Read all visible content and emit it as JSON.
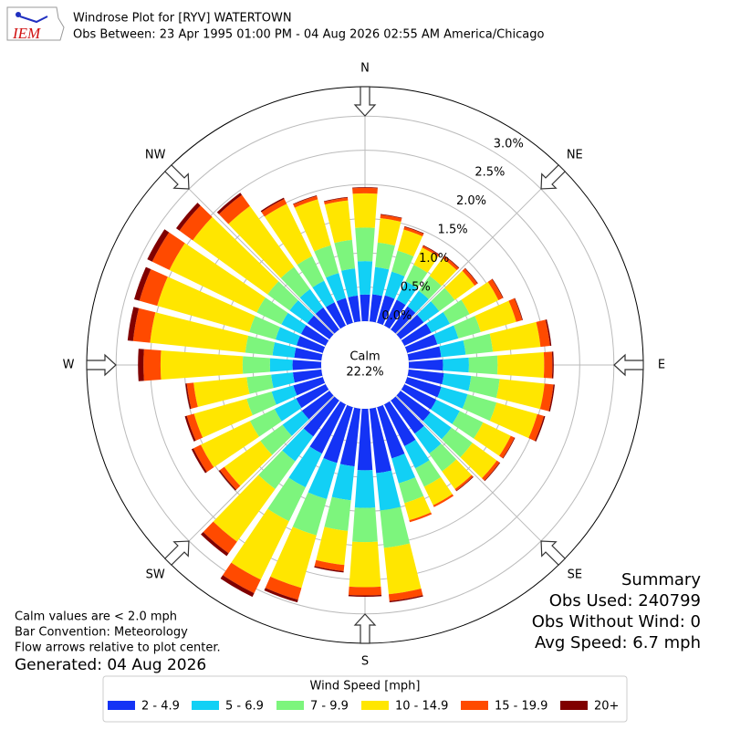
{
  "logo_text": "IEM",
  "chart_data": {
    "type": "windrose",
    "title": "Windrose Plot for [RYV] WATERTOWN",
    "subtitle": "Obs Between: 23 Apr 1995 01:00 PM - 04 Aug 2026 02:55 AM America/Chicago",
    "x": [
      0,
      10,
      20,
      30,
      40,
      50,
      60,
      70,
      80,
      90,
      100,
      110,
      120,
      130,
      140,
      150,
      160,
      170,
      180,
      190,
      200,
      210,
      220,
      230,
      240,
      250,
      260,
      270,
      280,
      290,
      300,
      310,
      320,
      330,
      340,
      350
    ],
    "xlim": [
      0,
      360
    ],
    "xticks": [
      {
        "value": 0,
        "label": "N"
      },
      {
        "value": 45,
        "label": "NE"
      },
      {
        "value": 90,
        "label": "E"
      },
      {
        "value": 135,
        "label": "SE"
      },
      {
        "value": 180,
        "label": "S"
      },
      {
        "value": 225,
        "label": "SW"
      },
      {
        "value": 270,
        "label": "W"
      },
      {
        "value": 315,
        "label": "NW"
      }
    ],
    "ylim": [
      0,
      3.43
    ],
    "yticks": [
      {
        "value": 0,
        "label": "0.0%"
      },
      {
        "value": 0.5,
        "label": "0.5%"
      },
      {
        "value": 1.0,
        "label": "1.0%"
      },
      {
        "value": 1.5,
        "label": "1.5%"
      },
      {
        "value": 2.0,
        "label": "2.0%"
      },
      {
        "value": 2.5,
        "label": "2.5%"
      },
      {
        "value": 3.0,
        "label": "3.0%"
      }
    ],
    "grid": true,
    "calm": {
      "label": "Calm",
      "text": "22.2%"
    },
    "legend_title": "Wind Speed [mph]",
    "series": [
      {
        "name": "2 - 4.9",
        "color": "#1433f5",
        "values": [
          0.39,
          0.4,
          0.42,
          0.42,
          0.42,
          0.42,
          0.44,
          0.46,
          0.48,
          0.5,
          0.52,
          0.52,
          0.52,
          0.54,
          0.6,
          0.68,
          0.78,
          0.95,
          0.9,
          0.85,
          0.85,
          0.8,
          0.65,
          0.5,
          0.48,
          0.45,
          0.42,
          0.42,
          0.4,
          0.4,
          0.4,
          0.4,
          0.4,
          0.38,
          0.38,
          0.38
        ]
      },
      {
        "name": "5 - 6.9",
        "color": "#12d0f5",
        "values": [
          0.49,
          0.4,
          0.36,
          0.3,
          0.28,
          0.28,
          0.3,
          0.32,
          0.36,
          0.38,
          0.4,
          0.4,
          0.38,
          0.38,
          0.36,
          0.36,
          0.38,
          0.55,
          0.55,
          0.5,
          0.55,
          0.55,
          0.45,
          0.35,
          0.35,
          0.33,
          0.32,
          0.33,
          0.32,
          0.32,
          0.32,
          0.32,
          0.33,
          0.35,
          0.38,
          0.4
        ]
      },
      {
        "name": "7 - 9.9",
        "color": "#7df57d",
        "values": [
          0.49,
          0.36,
          0.32,
          0.27,
          0.27,
          0.28,
          0.32,
          0.34,
          0.4,
          0.42,
          0.42,
          0.44,
          0.38,
          0.38,
          0.32,
          0.3,
          0.3,
          0.55,
          0.5,
          0.45,
          0.55,
          0.55,
          0.5,
          0.4,
          0.4,
          0.38,
          0.36,
          0.4,
          0.4,
          0.4,
          0.4,
          0.4,
          0.4,
          0.4,
          0.42,
          0.42
        ]
      },
      {
        "name": "10 - 14.9",
        "color": "#ffe600",
        "values": [
          0.5,
          0.36,
          0.32,
          0.28,
          0.32,
          0.36,
          0.47,
          0.54,
          0.7,
          0.68,
          0.66,
          0.62,
          0.45,
          0.44,
          0.32,
          0.3,
          0.26,
          0.68,
          0.66,
          0.5,
          0.8,
          0.95,
          0.95,
          0.65,
          0.8,
          0.8,
          0.78,
          1.2,
          1.4,
          1.4,
          1.42,
          1.35,
          1.1,
          0.85,
          0.7,
          0.58
        ]
      },
      {
        "name": "15 - 19.9",
        "color": "#ff4a00",
        "values": [
          0.08,
          0.05,
          0.04,
          0.03,
          0.04,
          0.05,
          0.07,
          0.09,
          0.14,
          0.12,
          0.13,
          0.1,
          0.06,
          0.05,
          0.03,
          0.03,
          0.03,
          0.1,
          0.12,
          0.09,
          0.18,
          0.22,
          0.21,
          0.08,
          0.12,
          0.11,
          0.1,
          0.25,
          0.25,
          0.27,
          0.28,
          0.24,
          0.2,
          0.08,
          0.05,
          0.04
        ]
      },
      {
        "name": "20+",
        "color": "#800000",
        "values": [
          0.01,
          0.01,
          0.01,
          0.01,
          0.01,
          0.01,
          0.01,
          0.01,
          0.02,
          0.02,
          0.02,
          0.02,
          0.01,
          0.01,
          0.01,
          0.0,
          0.0,
          0.02,
          0.02,
          0.02,
          0.04,
          0.06,
          0.05,
          0.02,
          0.03,
          0.03,
          0.02,
          0.08,
          0.08,
          0.08,
          0.08,
          0.06,
          0.04,
          0.02,
          0.01,
          0.01
        ]
      }
    ],
    "notes": [
      "Calm values are < 2.0 mph",
      "Bar Convention: Meteorology",
      "Flow arrows relative to plot center."
    ],
    "generated": "Generated: 04 Aug 2026",
    "summary": [
      "Summary",
      "Obs Used: 240799",
      "Obs Without Wind: 0",
      "Avg Speed: 6.7 mph"
    ]
  }
}
